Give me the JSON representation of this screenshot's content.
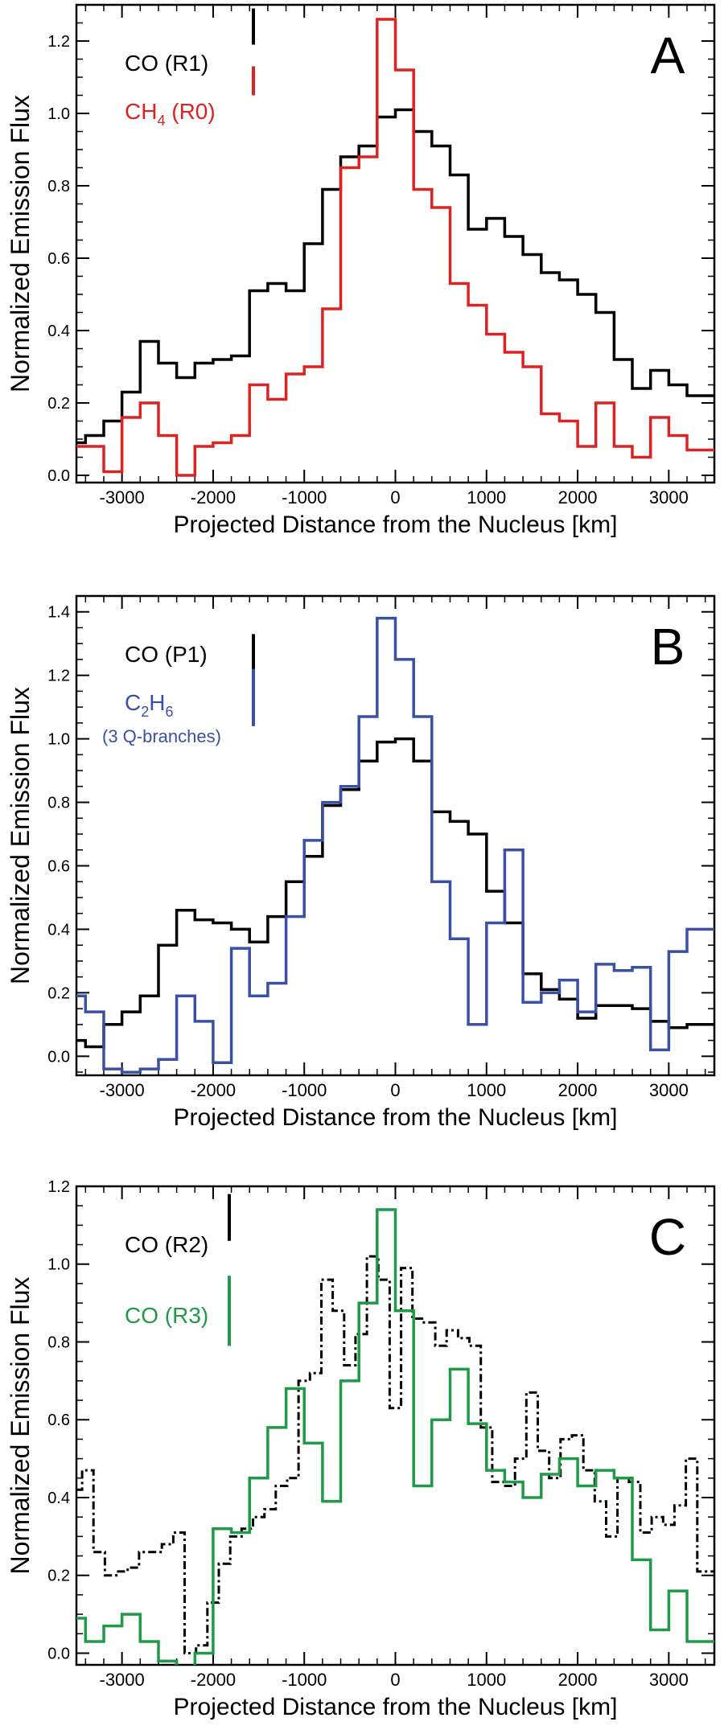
{
  "chart_data": [
    {
      "type": "line",
      "panel_label": "A",
      "xlabel": "Projected Distance from the Nucleus [km]",
      "ylabel": "Normalized Emission Flux",
      "xlim": [
        -3500,
        3500
      ],
      "ylim": [
        -0.02,
        1.3
      ],
      "xticks": [
        -3000,
        -2000,
        -1000,
        0,
        1000,
        2000,
        3000
      ],
      "yticks": [
        0.0,
        0.2,
        0.4,
        0.6,
        0.8,
        1.0,
        1.2
      ],
      "legend_placement": "top-left",
      "series": [
        {
          "name": "CO (R1)",
          "name_main": "CO (R1)",
          "name_sub": "",
          "name_tail": "",
          "name_line2": "",
          "color": "#000000",
          "dash": "solid",
          "x": [
            -3500,
            -3300,
            -3100,
            -2900,
            -2700,
            -2500,
            -2300,
            -2100,
            -1900,
            -1700,
            -1500,
            -1300,
            -1100,
            -900,
            -700,
            -500,
            -300,
            -100,
            100,
            300,
            500,
            700,
            900,
            1100,
            1300,
            1500,
            1700,
            1900,
            2100,
            2300,
            2500,
            2700,
            2900,
            3100,
            3300
          ],
          "y": [
            0.09,
            0.11,
            0.15,
            0.23,
            0.37,
            0.31,
            0.27,
            0.31,
            0.32,
            0.33,
            0.51,
            0.53,
            0.51,
            0.64,
            0.79,
            0.88,
            0.91,
            0.99,
            1.01,
            0.95,
            0.91,
            0.83,
            0.68,
            0.71,
            0.66,
            0.61,
            0.56,
            0.54,
            0.5,
            0.45,
            0.32,
            0.24,
            0.29,
            0.25,
            0.22
          ],
          "legend_bar": [
            1.19,
            1.29
          ]
        },
        {
          "name": "CH4 (R0)",
          "name_main": "CH",
          "name_sub": "4",
          "name_tail": " (R0)",
          "name_line2": "",
          "color": "#dd2222",
          "dash": "solid",
          "x": [
            -3500,
            -3300,
            -3100,
            -2900,
            -2700,
            -2500,
            -2300,
            -2100,
            -1900,
            -1700,
            -1500,
            -1300,
            -1100,
            -900,
            -700,
            -500,
            -300,
            -100,
            100,
            300,
            500,
            700,
            900,
            1100,
            1300,
            1500,
            1700,
            1900,
            2100,
            2300,
            2500,
            2700,
            2900,
            3100,
            3300
          ],
          "y": [
            0.08,
            0.08,
            0.01,
            0.16,
            0.2,
            0.11,
            0.0,
            0.08,
            0.09,
            0.11,
            0.25,
            0.21,
            0.28,
            0.3,
            0.46,
            0.85,
            0.88,
            1.26,
            1.12,
            0.79,
            0.74,
            0.53,
            0.47,
            0.39,
            0.34,
            0.3,
            0.17,
            0.15,
            0.08,
            0.2,
            0.08,
            0.05,
            0.16,
            0.11,
            0.07
          ],
          "legend_bar": [
            1.05,
            1.13
          ]
        }
      ]
    },
    {
      "type": "line",
      "panel_label": "B",
      "xlabel": "Projected Distance from the Nucleus [km]",
      "ylabel": "Normalized Emission Flux",
      "xlim": [
        -3500,
        3500
      ],
      "ylim": [
        -0.06,
        1.45
      ],
      "xticks": [
        -3000,
        -2000,
        -1000,
        0,
        1000,
        2000,
        3000
      ],
      "yticks": [
        0.0,
        0.2,
        0.4,
        0.6,
        0.8,
        1.0,
        1.2,
        1.4
      ],
      "legend_placement": "top-left",
      "series": [
        {
          "name": "CO (P1)",
          "name_main": "CO (P1)",
          "name_sub": "",
          "name_tail": "",
          "name_line2": "",
          "color": "#000000",
          "dash": "solid",
          "x": [
            -3500,
            -3300,
            -3100,
            -2900,
            -2700,
            -2500,
            -2300,
            -2100,
            -1900,
            -1700,
            -1500,
            -1300,
            -1100,
            -900,
            -700,
            -500,
            -300,
            -100,
            100,
            300,
            500,
            700,
            900,
            1100,
            1300,
            1500,
            1700,
            1900,
            2100,
            2300,
            2500,
            2700,
            2900,
            3100,
            3300
          ],
          "y": [
            0.05,
            0.03,
            0.1,
            0.14,
            0.19,
            0.35,
            0.46,
            0.43,
            0.42,
            0.4,
            0.36,
            0.44,
            0.55,
            0.63,
            0.79,
            0.84,
            0.93,
            0.99,
            1.0,
            0.93,
            0.77,
            0.74,
            0.7,
            0.52,
            0.42,
            0.26,
            0.21,
            0.18,
            0.12,
            0.16,
            0.16,
            0.15,
            0.11,
            0.09,
            0.1
          ],
          "legend_bar": [
            1.2,
            1.33
          ]
        },
        {
          "name": "C2H6 (3 Q-branches)",
          "name_main": "C",
          "name_sub": "2",
          "name_tail": "",
          "name_line2": "(3 Q-branches)",
          "color": "#3a50a5",
          "dash": "solid",
          "x": [
            -3500,
            -3300,
            -3100,
            -2900,
            -2700,
            -2500,
            -2300,
            -2100,
            -1900,
            -1700,
            -1500,
            -1300,
            -1100,
            -900,
            -700,
            -500,
            -300,
            -100,
            100,
            300,
            500,
            700,
            900,
            1100,
            1300,
            1500,
            1700,
            1900,
            2100,
            2300,
            2500,
            2700,
            2900,
            3100,
            3300
          ],
          "y": [
            0.19,
            0.14,
            -0.04,
            -0.05,
            -0.04,
            -0.01,
            0.19,
            0.11,
            -0.02,
            0.34,
            0.19,
            0.23,
            0.44,
            0.68,
            0.8,
            0.85,
            1.07,
            1.38,
            1.25,
            1.07,
            0.55,
            0.37,
            0.1,
            0.42,
            0.65,
            0.17,
            0.2,
            0.24,
            0.14,
            0.29,
            0.27,
            0.28,
            0.02,
            0.33,
            0.4
          ],
          "legend_bar": [
            1.04,
            1.22
          ]
        }
      ]
    },
    {
      "type": "line",
      "panel_label": "C",
      "xlabel": "Projected Distance from the Nucleus [km]",
      "ylabel": "Normalized Emission Flux",
      "xlim": [
        -3500,
        3500
      ],
      "ylim": [
        -0.03,
        1.2
      ],
      "xticks": [
        -3000,
        -2000,
        -1000,
        0,
        1000,
        2000,
        3000
      ],
      "yticks": [
        0.0,
        0.2,
        0.4,
        0.6,
        0.8,
        1.0,
        1.2
      ],
      "legend_placement": "top-left",
      "series": [
        {
          "name": "CO (R2)",
          "name_main": "CO (R2)",
          "name_sub": "",
          "name_tail": "",
          "name_line2": "",
          "color": "#000000",
          "dash": "dashdot",
          "x": [
            -3500,
            -3375,
            -3250,
            -3125,
            -3000,
            -2875,
            -2750,
            -2625,
            -2500,
            -2375,
            -2250,
            -2125,
            -2000,
            -1875,
            -1750,
            -1625,
            -1500,
            -1375,
            -1250,
            -1125,
            -1000,
            -875,
            -750,
            -625,
            -500,
            -375,
            -250,
            -125,
            0,
            125,
            250,
            375,
            500,
            625,
            750,
            875,
            1000,
            1125,
            1250,
            1375,
            1500,
            1625,
            1750,
            1875,
            2000,
            2125,
            2250,
            2375,
            2500,
            2625,
            2750,
            2875,
            3000,
            3125,
            3250,
            3375
          ],
          "y": [
            0.42,
            0.47,
            0.26,
            0.2,
            0.21,
            0.22,
            0.26,
            0.26,
            0.28,
            0.31,
            0.0,
            0.02,
            0.13,
            0.23,
            0.3,
            0.32,
            0.35,
            0.37,
            0.43,
            0.45,
            0.7,
            0.72,
            0.96,
            0.88,
            0.74,
            0.82,
            1.02,
            0.96,
            0.63,
            0.99,
            0.86,
            0.85,
            0.79,
            0.83,
            0.81,
            0.79,
            0.58,
            0.44,
            0.43,
            0.5,
            0.67,
            0.52,
            0.45,
            0.55,
            0.56,
            0.47,
            0.39,
            0.3,
            0.45,
            0.44,
            0.31,
            0.35,
            0.33,
            0.38,
            0.5,
            0.21
          ],
          "legend_bar": [
            1.06,
            1.18
          ]
        },
        {
          "name": "CO (R3)",
          "name_main": "CO (R3)",
          "name_sub": "",
          "name_tail": "",
          "name_line2": "",
          "color": "#1f9a48",
          "dash": "solid",
          "x": [
            -3500,
            -3300,
            -3100,
            -2900,
            -2700,
            -2500,
            -2300,
            -2100,
            -1900,
            -1700,
            -1500,
            -1300,
            -1100,
            -900,
            -700,
            -500,
            -300,
            -100,
            100,
            300,
            500,
            700,
            900,
            1100,
            1300,
            1500,
            1700,
            1900,
            2100,
            2300,
            2500,
            2700,
            2900,
            3100,
            3300
          ],
          "y": [
            0.09,
            0.03,
            0.07,
            0.1,
            0.03,
            -0.02,
            -0.04,
            0.0,
            0.32,
            0.31,
            0.45,
            0.58,
            0.68,
            0.54,
            0.39,
            0.7,
            0.9,
            1.14,
            0.88,
            0.43,
            0.6,
            0.73,
            0.59,
            0.47,
            0.44,
            0.4,
            0.46,
            0.5,
            0.43,
            0.47,
            0.45,
            0.24,
            0.06,
            0.16,
            0.03
          ],
          "legend_bar": [
            0.79,
            0.97
          ]
        }
      ]
    }
  ]
}
